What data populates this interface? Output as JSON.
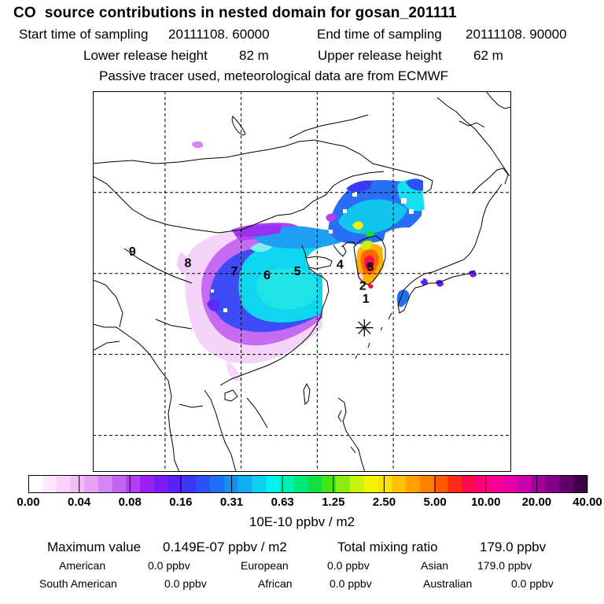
{
  "title": "CO  source contributions in nested domain for gosan_201111",
  "header": {
    "start_label": "Start time of sampling",
    "start_value": "20111108. 60000",
    "end_label": "End time of sampling",
    "end_value": "20111108. 90000",
    "lower_label": "Lower release height",
    "lower_value": "82 m",
    "upper_label": "Upper release height",
    "upper_value": "62 m",
    "note": "Passive tracer used, meteorological data are from ECMWF"
  },
  "map": {
    "day_markers": [
      {
        "label": "1",
        "lon": 126.4,
        "lat": 36.4
      },
      {
        "label": "2",
        "lon": 126.0,
        "lat": 38.0
      },
      {
        "label": "3",
        "lon": 127.0,
        "lat": 40.3
      },
      {
        "label": "4",
        "lon": 123.0,
        "lat": 40.6
      },
      {
        "label": "5",
        "lon": 117.4,
        "lat": 39.8
      },
      {
        "label": "6",
        "lon": 113.4,
        "lat": 39.3
      },
      {
        "label": "7",
        "lon": 109.1,
        "lat": 39.8
      },
      {
        "label": "8",
        "lon": 103.0,
        "lat": 40.8
      },
      {
        "label": "9",
        "lon": 95.7,
        "lat": 42.2
      }
    ],
    "receptor": {
      "name": "gosan",
      "lon": 126.2,
      "lat": 33.3,
      "icon": "asterisk-icon"
    },
    "gridlines": {
      "lons": [
        100,
        110,
        120,
        130
      ],
      "lats": [
        20,
        30,
        40,
        50
      ]
    },
    "extent": {
      "lon": [
        90.5,
        145.5
      ],
      "lat": [
        15.5,
        62.5
      ]
    }
  },
  "colorbar": {
    "ticks": [
      "0.00",
      "0.04",
      "0.08",
      "0.16",
      "0.31",
      "0.63",
      "1.25",
      "2.50",
      "5.00",
      "10.00",
      "20.00",
      "40.00"
    ],
    "colors": [
      "#ffffff",
      "#fde8ff",
      "#f8d2fb",
      "#f2bcf8",
      "#e7a2f6",
      "#d685f4",
      "#c463f2",
      "#b040f0",
      "#9a20f2",
      "#7d1bf5",
      "#5a22f7",
      "#3b37f8",
      "#2a52f5",
      "#1f70f3",
      "#168ef1",
      "#10aef0",
      "#0ecfef",
      "#00f2ec",
      "#00f0b4",
      "#00e87a",
      "#10e040",
      "#44e418",
      "#8cec10",
      "#c8f210",
      "#f4f400",
      "#ffe000",
      "#ffc000",
      "#ffa200",
      "#ff8000",
      "#ff5a00",
      "#ff2c1c",
      "#ff0a4a",
      "#ff007c",
      "#f80098",
      "#e400a6",
      "#c800ae",
      "#a4009c",
      "#820084",
      "#62006a",
      "#3c0046"
    ],
    "unit": "10E-10 ppbv / m2"
  },
  "summary": {
    "max_label": "Maximum value",
    "max_value": "0.149E-07 ppbv / m2",
    "total_label": "Total mixing ratio",
    "total_value": "179.0 ppbv",
    "regions": [
      {
        "name": "American",
        "value": "0.0 ppbv"
      },
      {
        "name": "European",
        "value": "0.0 ppbv"
      },
      {
        "name": "Asian",
        "value": "179.0 ppbv"
      },
      {
        "name": "South American",
        "value": "0.0 ppbv"
      },
      {
        "name": "African",
        "value": "0.0 ppbv"
      },
      {
        "name": "Australian",
        "value": "0.0 ppbv"
      }
    ]
  }
}
